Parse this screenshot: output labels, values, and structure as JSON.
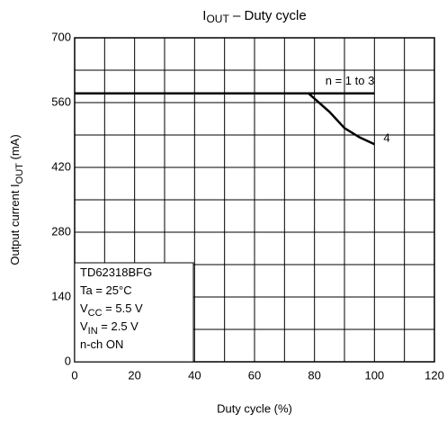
{
  "chart_data": {
    "type": "line",
    "title": [
      "I",
      "OUT",
      " – Duty cycle"
    ],
    "y_label": [
      "Output current  I",
      "OUT",
      "   (mA)"
    ],
    "x_label": "Duty cycle    (%)",
    "note": [
      [
        "TD62318BFG"
      ],
      [
        "Ta = 25°C"
      ],
      [
        "V",
        "CC",
        " = 5.5 V"
      ],
      [
        "V",
        "IN",
        " = 2.5 V"
      ],
      [
        "n-ch ON"
      ]
    ],
    "xlim": [
      0,
      120
    ],
    "ylim": [
      0,
      700
    ],
    "xticks": [
      0,
      20,
      40,
      60,
      80,
      100,
      120
    ],
    "yticks": [
      0,
      140,
      280,
      420,
      560,
      700
    ],
    "xminor": [
      10,
      30,
      50,
      70,
      90,
      110
    ],
    "yminor": [
      70,
      210,
      350,
      490,
      630
    ],
    "grid": true,
    "series": [
      {
        "name": "n = 1 to 3",
        "color": "#000000",
        "x": [
          0,
          100
        ],
        "values": [
          580,
          580
        ]
      },
      {
        "name": "4",
        "color": "#000000",
        "x": [
          0,
          78,
          85,
          90,
          95,
          100
        ],
        "values": [
          580,
          580,
          540,
          505,
          485,
          470
        ]
      }
    ]
  }
}
